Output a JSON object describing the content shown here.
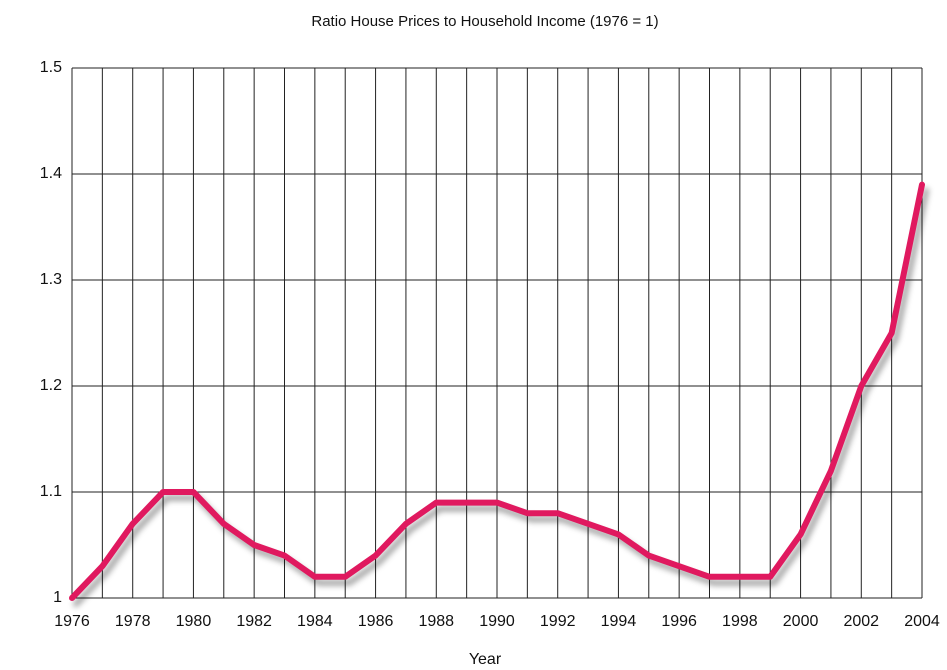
{
  "chart_data": {
    "type": "line",
    "title": "Ratio House Prices to Household Income (1976 = 1)",
    "x_label": "Year",
    "x": [
      1976,
      1977,
      1978,
      1979,
      1980,
      1981,
      1982,
      1983,
      1984,
      1985,
      1986,
      1987,
      1988,
      1989,
      1990,
      1991,
      1992,
      1993,
      1994,
      1995,
      1996,
      1997,
      1998,
      1999,
      2000,
      2001,
      2002,
      2003,
      2004
    ],
    "series": [
      {
        "color": "#e0195f",
        "values": [
          1.0,
          1.03,
          1.07,
          1.1,
          1.1,
          1.07,
          1.05,
          1.04,
          1.02,
          1.02,
          1.04,
          1.07,
          1.09,
          1.09,
          1.09,
          1.08,
          1.08,
          1.07,
          1.06,
          1.04,
          1.03,
          1.02,
          1.02,
          1.02,
          1.06,
          1.12,
          1.2,
          1.25,
          1.39
        ]
      }
    ],
    "xlim": [
      1976,
      2004
    ],
    "xticks": [
      1976,
      1978,
      1980,
      1982,
      1984,
      1986,
      1988,
      1990,
      1992,
      1994,
      1996,
      1998,
      2000,
      2002,
      2004
    ],
    "ylim": [
      1,
      1.5
    ],
    "yticks": [
      1,
      1.1,
      1.2,
      1.3,
      1.4,
      1.5
    ],
    "grid": true
  }
}
